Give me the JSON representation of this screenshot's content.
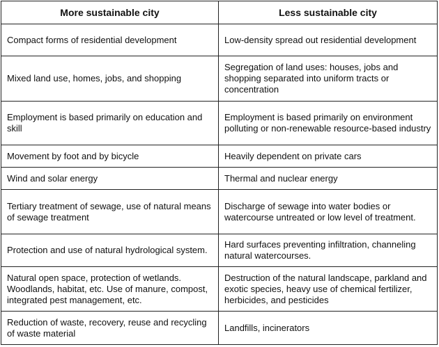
{
  "headers": [
    "More sustainable  city",
    "Less sustainable  city"
  ],
  "rows": [
    [
      "Compact forms of residential development",
      "Low-density spread out residential development"
    ],
    [
      "Mixed land use, homes, jobs, and shopping",
      "Segregation of land uses: houses, jobs and shopping separated into uniform tracts or concentration"
    ],
    [
      "Employment is based primarily on education and skill",
      "Employment is based primarily on environment polluting or non-renewable resource-based industry"
    ],
    [
      "Movement by foot and by bicycle",
      "Heavily dependent on private cars"
    ],
    [
      "Wind and solar energy",
      "Thermal and nuclear energy"
    ],
    [
      "Tertiary treatment of sewage, use of natural means of sewage treatment",
      "Discharge of sewage into water bodies or watercourse untreated or low level of treatment."
    ],
    [
      "Protection and use of natural hydrological system.",
      "Hard surfaces preventing infiltration, channeling natural watercourses."
    ],
    [
      "Natural open space, protection of wetlands. Woodlands, habitat, etc. Use of manure, compost, integrated pest management, etc.",
      "Destruction of the natural landscape, parkland and exotic species, heavy use of chemical fertilizer, herbicides, and pesticides"
    ],
    [
      "Reduction of waste, recovery, reuse and recycling of waste material",
      "Landfills, incinerators"
    ]
  ]
}
